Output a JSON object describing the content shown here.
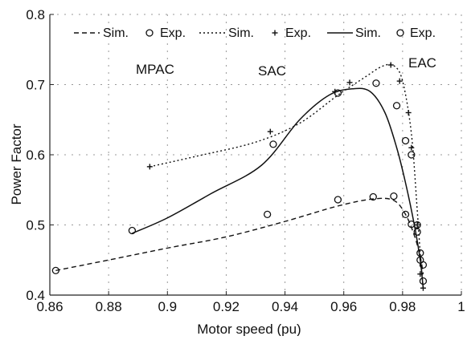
{
  "chart_data": {
    "type": "line",
    "xlabel": "Motor speed (pu)",
    "ylabel": "Power Factor",
    "xlim": [
      0.86,
      1.0
    ],
    "ylim": [
      0.4,
      0.8
    ],
    "xticks": [
      "0.86",
      "0.88",
      "0.9",
      "0.92",
      "0.94",
      "0.96",
      "0.98",
      "1"
    ],
    "yticks": [
      "0.4",
      "0.5",
      "0.6",
      "0.7",
      "0.8"
    ],
    "grid": true,
    "legend_placement": "top",
    "legend": [
      "Sim.",
      "Exp.",
      "Sim.",
      "Exp.",
      "Sim.",
      "Exp."
    ],
    "annotations": [
      "MPAC",
      "SAC",
      "EAC"
    ],
    "series": [
      {
        "style": "dashed",
        "marker": "circle",
        "sim": [
          [
            0.862,
            0.435
          ],
          [
            0.88,
            0.45
          ],
          [
            0.9,
            0.467
          ],
          [
            0.92,
            0.483
          ],
          [
            0.94,
            0.505
          ],
          [
            0.958,
            0.527
          ],
          [
            0.97,
            0.537
          ],
          [
            0.977,
            0.535
          ],
          [
            0.981,
            0.515
          ],
          [
            0.984,
            0.485
          ],
          [
            0.986,
            0.455
          ],
          [
            0.987,
            0.43
          ]
        ],
        "exp": [
          [
            0.862,
            0.435
          ],
          [
            0.934,
            0.515
          ],
          [
            0.958,
            0.536
          ],
          [
            0.97,
            0.54
          ],
          [
            0.977,
            0.541
          ],
          [
            0.981,
            0.515
          ],
          [
            0.983,
            0.501
          ],
          [
            0.985,
            0.49
          ],
          [
            0.986,
            0.46
          ],
          [
            0.987,
            0.443
          ]
        ]
      },
      {
        "style": "dotted",
        "marker": "plus",
        "sim": [
          [
            0.894,
            0.583
          ],
          [
            0.91,
            0.598
          ],
          [
            0.93,
            0.618
          ],
          [
            0.945,
            0.645
          ],
          [
            0.958,
            0.685
          ],
          [
            0.967,
            0.71
          ],
          [
            0.973,
            0.726
          ],
          [
            0.977,
            0.727
          ],
          [
            0.98,
            0.705
          ],
          [
            0.983,
            0.63
          ],
          [
            0.985,
            0.52
          ],
          [
            0.986,
            0.46
          ],
          [
            0.987,
            0.41
          ]
        ],
        "exp": [
          [
            0.894,
            0.583
          ],
          [
            0.935,
            0.633
          ],
          [
            0.957,
            0.69
          ],
          [
            0.962,
            0.703
          ],
          [
            0.976,
            0.728
          ],
          [
            0.979,
            0.705
          ],
          [
            0.982,
            0.66
          ],
          [
            0.983,
            0.61
          ],
          [
            0.985,
            0.5
          ],
          [
            0.986,
            0.43
          ],
          [
            0.987,
            0.41
          ]
        ]
      },
      {
        "style": "solid",
        "marker": "circle",
        "sim": [
          [
            0.888,
            0.488
          ],
          [
            0.9,
            0.51
          ],
          [
            0.915,
            0.545
          ],
          [
            0.932,
            0.585
          ],
          [
            0.945,
            0.65
          ],
          [
            0.955,
            0.685
          ],
          [
            0.963,
            0.694
          ],
          [
            0.969,
            0.69
          ],
          [
            0.974,
            0.66
          ],
          [
            0.978,
            0.61
          ],
          [
            0.981,
            0.56
          ],
          [
            0.984,
            0.5
          ],
          [
            0.986,
            0.45
          ],
          [
            0.987,
            0.41
          ]
        ],
        "exp": [
          [
            0.888,
            0.492
          ],
          [
            0.936,
            0.615
          ],
          [
            0.958,
            0.688
          ],
          [
            0.971,
            0.702
          ],
          [
            0.978,
            0.67
          ],
          [
            0.981,
            0.62
          ],
          [
            0.983,
            0.6
          ],
          [
            0.985,
            0.5
          ],
          [
            0.986,
            0.45
          ],
          [
            0.987,
            0.42
          ]
        ]
      }
    ]
  }
}
